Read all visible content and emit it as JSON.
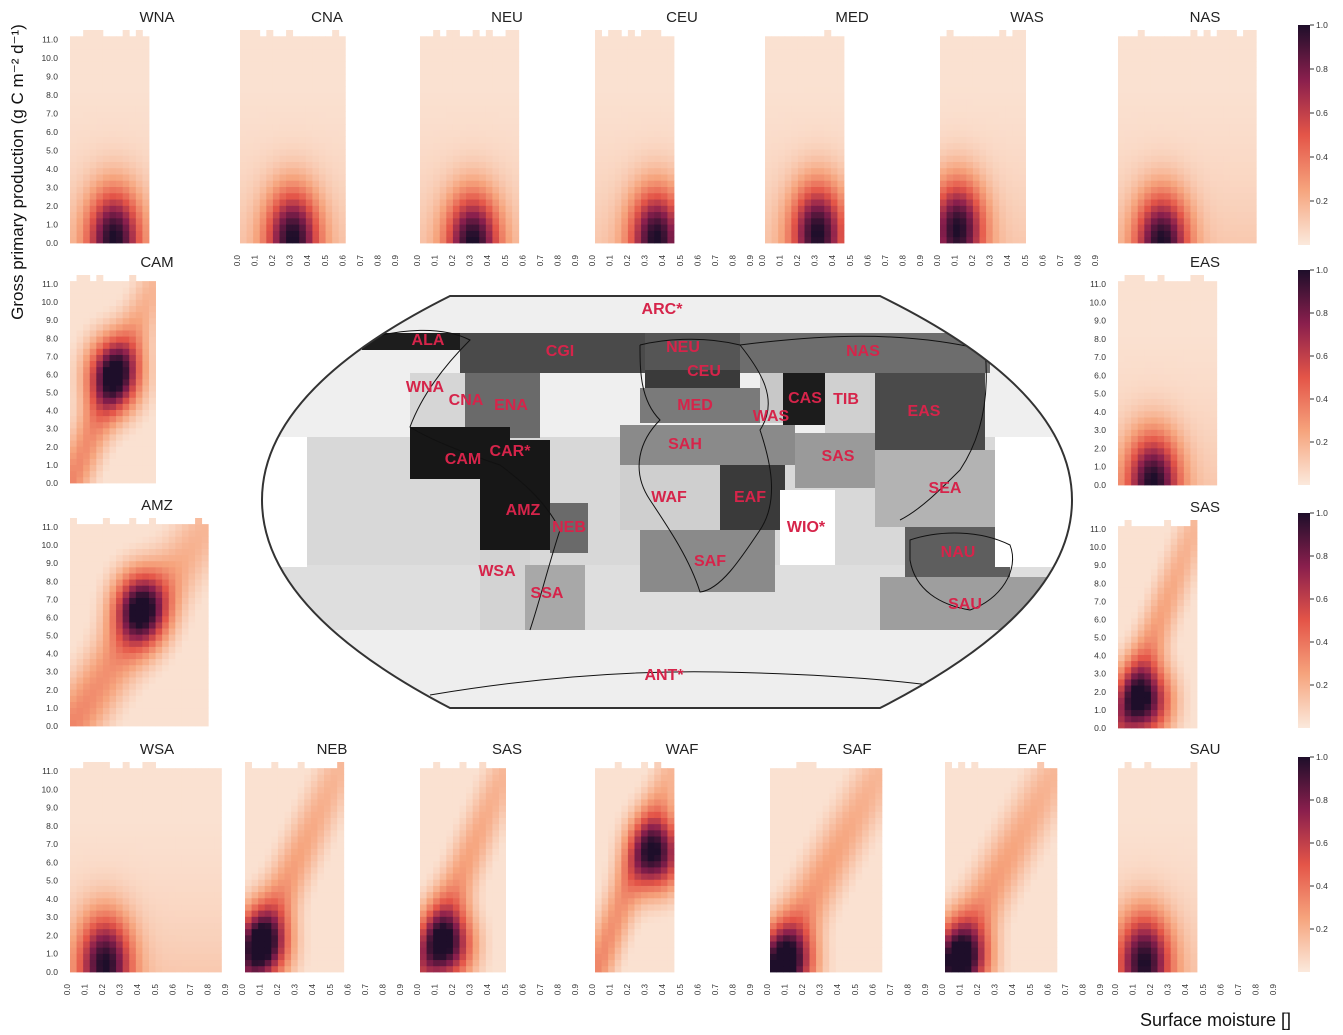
{
  "figure": {
    "ylabel": "Gross primary production (g C m⁻² d⁻¹)",
    "xlabel": "Surface moisture []"
  },
  "colors": {
    "low": "#fbe9dc",
    "mid": "#e05a4a",
    "high": "#1e0e2a",
    "map_dark": "#2a2a2a",
    "map_label": "#d6244a"
  },
  "chart_data": {
    "type": "heatmap",
    "x_ticks": [
      "0.0",
      "0.1",
      "0.2",
      "0.3",
      "0.4",
      "0.5",
      "0.6",
      "0.7",
      "0.8",
      "0.9"
    ],
    "y_ticks": [
      "0.0",
      "1.0",
      "2.0",
      "3.0",
      "4.0",
      "5.0",
      "6.0",
      "7.0",
      "8.0",
      "9.0",
      "10.0",
      "11.0"
    ],
    "xlim": [
      0,
      0.9
    ],
    "ylim": [
      0,
      11.5
    ],
    "colorbar_ticks": [
      "0.2",
      "0.4",
      "0.6",
      "0.8",
      "1.0"
    ],
    "panels": [
      {
        "name": "WNA",
        "peak": [
          0.25,
          0.3
        ],
        "spread": "broad",
        "xmax": 0.45
      },
      {
        "name": "CNA",
        "peak": [
          0.3,
          0.3
        ],
        "spread": "broad",
        "xmax": 0.6
      },
      {
        "name": "NEU",
        "peak": [
          0.3,
          0.1
        ],
        "spread": "broad",
        "xmax": 0.55
      },
      {
        "name": "CEU",
        "peak": [
          0.35,
          0.3
        ],
        "spread": "broad",
        "xmax": 0.45
      },
      {
        "name": "MED",
        "peak": [
          0.3,
          0.6
        ],
        "spread": "broad",
        "xmax": 0.45
      },
      {
        "name": "WAS",
        "peak": [
          0.1,
          0.8
        ],
        "spread": "broad",
        "xmax": 0.5
      },
      {
        "name": "NAS",
        "peak": [
          0.25,
          0.1
        ],
        "spread": "broad",
        "xmax": 0.8
      },
      {
        "name": "CAM",
        "peak": [
          0.25,
          6.0
        ],
        "spread": "diagonal",
        "xmax": 0.5
      },
      {
        "name": "EAS",
        "peak": [
          0.2,
          0.2
        ],
        "spread": "broad",
        "xmax": 0.55
      },
      {
        "name": "AMZ",
        "peak": [
          0.4,
          6.5
        ],
        "spread": "diagonal",
        "xmax": 0.8
      },
      {
        "name": "SAS",
        "peak": [
          0.15,
          1.5
        ],
        "spread": "diagonal",
        "xmax": 0.45
      },
      {
        "name": "WSA",
        "peak": [
          0.2,
          0.5
        ],
        "spread": "broad",
        "xmax": 0.85
      },
      {
        "name": "NEB",
        "peak": [
          0.1,
          1.5
        ],
        "spread": "diagonal",
        "xmax": 0.55
      },
      {
        "name": "SAS",
        "peak": [
          0.15,
          1.5
        ],
        "spread": "diagonal",
        "xmax": 0.5
      },
      {
        "name": "WAF",
        "peak": [
          0.35,
          6.5
        ],
        "spread": "diagonal",
        "xmax": 0.45
      },
      {
        "name": "SAF",
        "peak": [
          0.1,
          0.5
        ],
        "spread": "diagonal",
        "xmax": 0.65
      },
      {
        "name": "EAF",
        "peak": [
          0.1,
          0.7
        ],
        "spread": "diagonal",
        "xmax": 0.65
      },
      {
        "name": "SAU",
        "peak": [
          0.15,
          0.6
        ],
        "spread": "broad",
        "xmax": 0.45
      }
    ]
  },
  "map": {
    "regions": [
      "ALA",
      "CGI",
      "NEU",
      "NAS",
      "WNA",
      "CNA",
      "ENA",
      "CEU",
      "MED",
      "WAS",
      "CAS",
      "TIB",
      "EAS",
      "CAM",
      "CAR*",
      "SAH",
      "SAS",
      "SEA",
      "AMZ",
      "NEB",
      "WAF",
      "EAF",
      "WIO*",
      "WSA",
      "SAF",
      "NAU",
      "SSA",
      "SAU",
      "ARC*",
      "ANT*"
    ]
  }
}
